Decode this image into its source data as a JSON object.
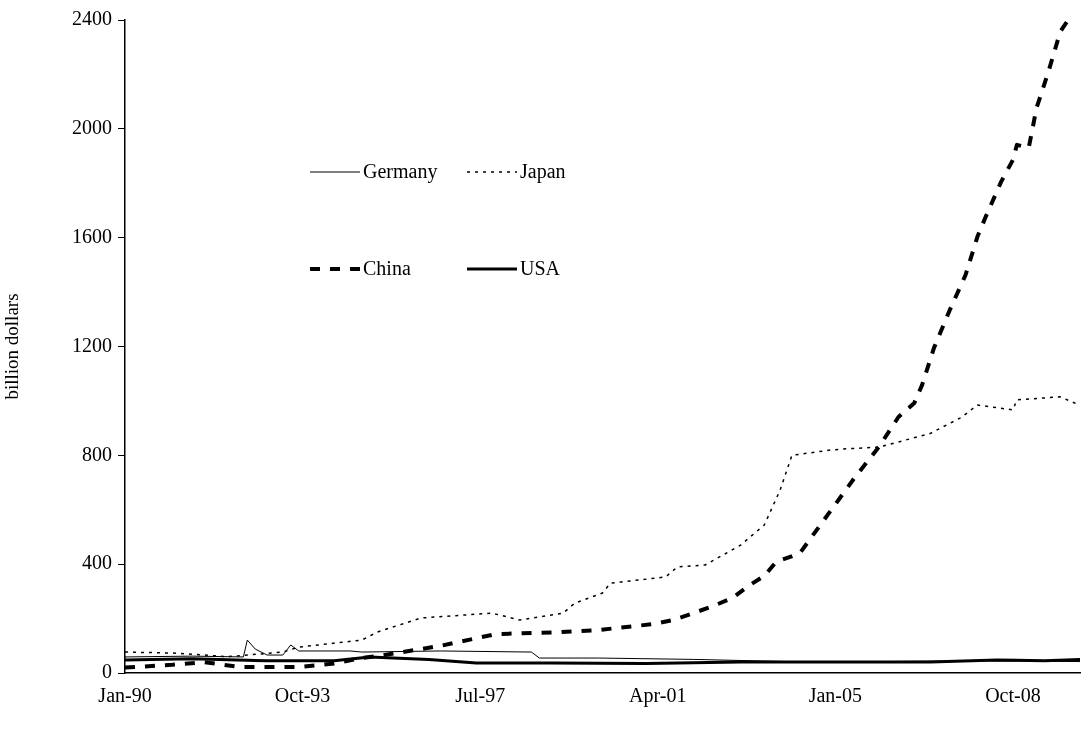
{
  "chart_data": {
    "type": "line",
    "ylabel": "billion dollars",
    "xlim": [
      "1990-01",
      "2010-03"
    ],
    "xticks": [
      {
        "value": "1990-01",
        "label": "Jan-90"
      },
      {
        "value": "1993-10",
        "label": "Oct-93"
      },
      {
        "value": "1997-07",
        "label": "Jul-97"
      },
      {
        "value": "2001-04",
        "label": "Apr-01"
      },
      {
        "value": "2005-01",
        "label": "Jan-05"
      },
      {
        "value": "2008-10",
        "label": "Oct-08"
      }
    ],
    "ylim": [
      0,
      2400
    ],
    "yticks": [
      0,
      400,
      800,
      1200,
      1600,
      2000,
      2400
    ],
    "grid": false,
    "legend": "top left",
    "marker": "none",
    "series": [
      {
        "name": "Germany",
        "color": "#000000",
        "line_style": "solid",
        "x": [
          "1990-01",
          "1991-06",
          "1992-07",
          "1992-08",
          "1992-10",
          "1993-01",
          "1993-05",
          "1993-07",
          "1993-09",
          "1994-10",
          "1995-01",
          "1996-09",
          "1998-08",
          "1998-10",
          "2000-01",
          "2002-01",
          "2004-01",
          "2006-01",
          "2008-01",
          "2010-03"
        ],
        "values": [
          59,
          62,
          59,
          121,
          88,
          66,
          66,
          103,
          81,
          81,
          77,
          81,
          77,
          55,
          55,
          50,
          42,
          42,
          45,
          42
        ]
      },
      {
        "name": "Japan",
        "color": "#000000",
        "line_style": "dotted",
        "x": [
          "1990-01",
          "1991-02",
          "1992-03",
          "1993-05",
          "1993-09",
          "1995-01",
          "1995-05",
          "1996-04",
          "1997-10",
          "1998-05",
          "1999-04",
          "1999-07",
          "2000-02",
          "2000-04",
          "2001-06",
          "2001-09",
          "2002-04",
          "2003-01",
          "2003-07",
          "2003-11",
          "2004-02",
          "2004-12",
          "2005-05",
          "2005-12",
          "2007-01",
          "2007-09",
          "2008-01",
          "2008-10",
          "2008-11",
          "2009-10",
          "2010-02"
        ],
        "values": [
          77,
          73,
          60,
          77,
          95,
          121,
          151,
          202,
          220,
          195,
          220,
          257,
          294,
          330,
          353,
          390,
          397,
          470,
          544,
          672,
          800,
          820,
          825,
          830,
          880,
          940,
          985,
          967,
          1004,
          1015,
          990
        ]
      },
      {
        "name": "China",
        "color": "#000000",
        "line_style": "dashed",
        "x": [
          "1990-01",
          "1991-01",
          "1991-09",
          "1992-06",
          "1993-09",
          "1994-06",
          "1995-01",
          "1995-05",
          "1996-09",
          "1997-11",
          "1999-03",
          "2000-01",
          "2001-03",
          "2001-08",
          "2002-01",
          "2002-06",
          "2002-11",
          "2003-03",
          "2003-07",
          "2003-10",
          "2004-04",
          "2005-01",
          "2005-06",
          "2005-12",
          "2006-05",
          "2006-09",
          "2006-11",
          "2007-02",
          "2007-06",
          "2007-10",
          "2008-01",
          "2008-03",
          "2008-07",
          "2008-10",
          "2008-11",
          "2009-02",
          "2009-04",
          "2009-07",
          "2009-10",
          "2009-12"
        ],
        "values": [
          20,
          30,
          40,
          22,
          22,
          35,
          55,
          62,
          100,
          143,
          150,
          158,
          180,
          195,
          220,
          246,
          276,
          320,
          357,
          408,
          440,
          620,
          720,
          830,
          941,
          992,
          1059,
          1195,
          1334,
          1463,
          1603,
          1673,
          1805,
          1886,
          1941,
          1930,
          2077,
          2210,
          2357,
          2400
        ]
      },
      {
        "name": "USA",
        "color": "#000000",
        "line_style": "solid",
        "x": [
          "1990-01",
          "1991-06",
          "1993-01",
          "1994-06",
          "1995-03",
          "1996-06",
          "1997-06",
          "1999-01",
          "2001-01",
          "2003-01",
          "2005-01",
          "2007-01",
          "2008-06",
          "2009-06",
          "2010-03"
        ],
        "values": [
          48,
          52,
          45,
          45,
          59,
          50,
          37,
          37,
          35,
          40,
          40,
          40,
          48,
          45,
          50
        ]
      }
    ]
  }
}
